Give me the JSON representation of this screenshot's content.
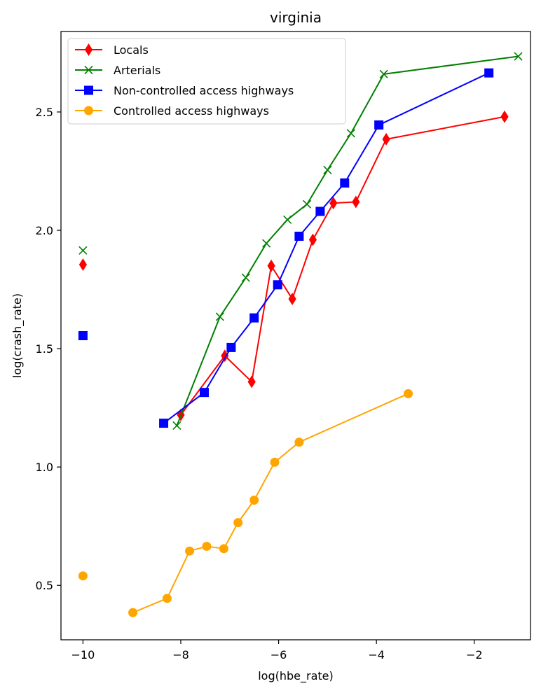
{
  "chart_data": {
    "type": "line",
    "title": "virginia",
    "xlabel": "log(hbe_rate)",
    "ylabel": "log(crash_rate)",
    "xlim": [
      -10.45,
      -0.85
    ],
    "ylim": [
      0.27,
      2.84
    ],
    "xticks": [
      -10,
      -8,
      -6,
      -4,
      -2
    ],
    "xtick_labels": [
      "−10",
      "−8",
      "−6",
      "−4",
      "−2"
    ],
    "yticks": [
      0.5,
      1.0,
      1.5,
      2.0,
      2.5
    ],
    "ytick_labels": [
      "0.5",
      "1.0",
      "1.5",
      "2.0",
      "2.5"
    ],
    "grid": false,
    "legend_position": "top-left",
    "series": [
      {
        "name": "Locals",
        "color": "#ff0000",
        "marker": "diamond",
        "x": [
          -8.0,
          -7.1,
          -6.55,
          -6.15,
          -5.72,
          -5.3,
          -4.88,
          -4.42,
          -3.8,
          -1.38
        ],
        "y": [
          1.22,
          1.47,
          1.36,
          1.85,
          1.71,
          1.96,
          2.115,
          2.12,
          2.385,
          2.48
        ],
        "isolated": [
          {
            "x": -10.0,
            "y": 1.855
          }
        ]
      },
      {
        "name": "Arterials",
        "color": "#008000",
        "marker": "x",
        "x": [
          -8.08,
          -7.2,
          -6.67,
          -6.25,
          -5.82,
          -5.42,
          -5.0,
          -4.52,
          -3.85,
          -1.1
        ],
        "y": [
          1.175,
          1.635,
          1.8,
          1.945,
          2.045,
          2.11,
          2.255,
          2.41,
          2.66,
          2.735
        ],
        "isolated": [
          {
            "x": -10.0,
            "y": 1.915
          }
        ]
      },
      {
        "name": "Non-controlled access highways",
        "color": "#0000ff",
        "marker": "square",
        "x": [
          -8.35,
          -7.52,
          -6.97,
          -6.5,
          -6.02,
          -5.58,
          -5.15,
          -4.65,
          -3.95,
          -1.7
        ],
        "y": [
          1.185,
          1.315,
          1.505,
          1.63,
          1.77,
          1.975,
          2.08,
          2.2,
          2.445,
          2.665
        ],
        "isolated": [
          {
            "x": -10.0,
            "y": 1.555
          }
        ]
      },
      {
        "name": "Controlled access highways",
        "color": "#ffa500",
        "marker": "circle",
        "x": [
          -8.98,
          -8.28,
          -7.82,
          -7.47,
          -7.12,
          -6.83,
          -6.5,
          -6.08,
          -5.58,
          -3.35
        ],
        "y": [
          0.385,
          0.445,
          0.645,
          0.665,
          0.655,
          0.765,
          0.86,
          1.02,
          1.105,
          1.31
        ],
        "isolated": [
          {
            "x": -10.0,
            "y": 0.54
          }
        ]
      }
    ]
  }
}
